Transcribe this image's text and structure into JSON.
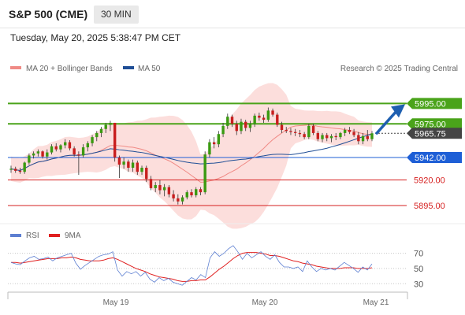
{
  "header": {
    "symbol": "S&P 500 (CME)",
    "interval": "30 MIN",
    "datetime": "Tuesday, May 20, 2025 5:38:47 PM CET"
  },
  "legend": {
    "ma20_label": "MA 20 + Bollinger Bands",
    "ma50_label": "MA 50",
    "credit": "Research © 2025 Trading Central",
    "ma20_color": "#f08a85",
    "ma50_color": "#1f4e96"
  },
  "chart_data": [
    {
      "type": "candlestick",
      "title": "",
      "x_ticks": [
        "May 19",
        "May 20",
        "May 21"
      ],
      "ylim": [
        5878,
        6013
      ],
      "levels": [
        {
          "value": 5995.0,
          "label": "5995.00",
          "color": "#4aa31a",
          "kind": "resistance"
        },
        {
          "value": 5975.0,
          "label": "5975.00",
          "color": "#4aa31a",
          "kind": "resistance"
        },
        {
          "value": 5965.75,
          "label": "5965.75",
          "color": "#444444",
          "kind": "last-price"
        },
        {
          "value": 5942.0,
          "label": "5942.00",
          "color": "#1e5fd6",
          "kind": "pivot"
        },
        {
          "value": 5920.0,
          "label": "5920.00",
          "color": "#d62020",
          "kind": "support"
        },
        {
          "value": 5895.0,
          "label": "5895.00",
          "color": "#d62020",
          "kind": "support"
        }
      ],
      "candles": [
        {
          "o": 5930,
          "h": 5934,
          "l": 5927,
          "c": 5931
        },
        {
          "o": 5931,
          "h": 5933,
          "l": 5927,
          "c": 5929
        },
        {
          "o": 5929,
          "h": 5932,
          "l": 5926,
          "c": 5928
        },
        {
          "o": 5928,
          "h": 5938,
          "l": 5926,
          "c": 5937
        },
        {
          "o": 5937,
          "h": 5946,
          "l": 5935,
          "c": 5944
        },
        {
          "o": 5944,
          "h": 5948,
          "l": 5941,
          "c": 5946
        },
        {
          "o": 5946,
          "h": 5950,
          "l": 5943,
          "c": 5948
        },
        {
          "o": 5948,
          "h": 5949,
          "l": 5941,
          "c": 5943
        },
        {
          "o": 5943,
          "h": 5950,
          "l": 5940,
          "c": 5947
        },
        {
          "o": 5947,
          "h": 5955,
          "l": 5945,
          "c": 5953
        },
        {
          "o": 5953,
          "h": 5956,
          "l": 5948,
          "c": 5950
        },
        {
          "o": 5950,
          "h": 5955,
          "l": 5947,
          "c": 5954
        },
        {
          "o": 5954,
          "h": 5960,
          "l": 5951,
          "c": 5957
        },
        {
          "o": 5957,
          "h": 5959,
          "l": 5949,
          "c": 5951
        },
        {
          "o": 5951,
          "h": 5953,
          "l": 5943,
          "c": 5945
        },
        {
          "o": 5945,
          "h": 5948,
          "l": 5925,
          "c": 5944
        },
        {
          "o": 5944,
          "h": 5955,
          "l": 5942,
          "c": 5952
        },
        {
          "o": 5952,
          "h": 5958,
          "l": 5948,
          "c": 5956
        },
        {
          "o": 5956,
          "h": 5964,
          "l": 5953,
          "c": 5962
        },
        {
          "o": 5962,
          "h": 5968,
          "l": 5958,
          "c": 5966
        },
        {
          "o": 5966,
          "h": 5972,
          "l": 5962,
          "c": 5970
        },
        {
          "o": 5970,
          "h": 5976,
          "l": 5966,
          "c": 5974
        },
        {
          "o": 5974,
          "h": 5978,
          "l": 5968,
          "c": 5976
        },
        {
          "o": 5976,
          "h": 5976,
          "l": 5938,
          "c": 5942
        },
        {
          "o": 5942,
          "h": 5944,
          "l": 5922,
          "c": 5935
        },
        {
          "o": 5935,
          "h": 5942,
          "l": 5931,
          "c": 5938
        },
        {
          "o": 5938,
          "h": 5940,
          "l": 5928,
          "c": 5932
        },
        {
          "o": 5932,
          "h": 5940,
          "l": 5928,
          "c": 5937
        },
        {
          "o": 5937,
          "h": 5939,
          "l": 5925,
          "c": 5928
        },
        {
          "o": 5928,
          "h": 5934,
          "l": 5925,
          "c": 5932
        },
        {
          "o": 5932,
          "h": 5934,
          "l": 5918,
          "c": 5921
        },
        {
          "o": 5921,
          "h": 5924,
          "l": 5910,
          "c": 5912
        },
        {
          "o": 5912,
          "h": 5918,
          "l": 5908,
          "c": 5915
        },
        {
          "o": 5915,
          "h": 5920,
          "l": 5906,
          "c": 5910
        },
        {
          "o": 5910,
          "h": 5916,
          "l": 5904,
          "c": 5913
        },
        {
          "o": 5913,
          "h": 5915,
          "l": 5903,
          "c": 5906
        },
        {
          "o": 5906,
          "h": 5910,
          "l": 5899,
          "c": 5902
        },
        {
          "o": 5902,
          "h": 5906,
          "l": 5896,
          "c": 5899
        },
        {
          "o": 5899,
          "h": 5905,
          "l": 5896,
          "c": 5903
        },
        {
          "o": 5903,
          "h": 5910,
          "l": 5901,
          "c": 5908
        },
        {
          "o": 5908,
          "h": 5911,
          "l": 5903,
          "c": 5905
        },
        {
          "o": 5905,
          "h": 5913,
          "l": 5903,
          "c": 5911
        },
        {
          "o": 5911,
          "h": 5913,
          "l": 5905,
          "c": 5908
        },
        {
          "o": 5908,
          "h": 5948,
          "l": 5906,
          "c": 5945
        },
        {
          "o": 5945,
          "h": 5960,
          "l": 5942,
          "c": 5957
        },
        {
          "o": 5957,
          "h": 5962,
          "l": 5951,
          "c": 5955
        },
        {
          "o": 5955,
          "h": 5968,
          "l": 5952,
          "c": 5965
        },
        {
          "o": 5965,
          "h": 5976,
          "l": 5962,
          "c": 5973
        },
        {
          "o": 5973,
          "h": 5985,
          "l": 5970,
          "c": 5982
        },
        {
          "o": 5982,
          "h": 5984,
          "l": 5972,
          "c": 5975
        },
        {
          "o": 5975,
          "h": 5978,
          "l": 5964,
          "c": 5968
        },
        {
          "o": 5968,
          "h": 5980,
          "l": 5965,
          "c": 5977
        },
        {
          "o": 5977,
          "h": 5979,
          "l": 5968,
          "c": 5971
        },
        {
          "o": 5971,
          "h": 5978,
          "l": 5967,
          "c": 5975
        },
        {
          "o": 5975,
          "h": 5985,
          "l": 5972,
          "c": 5983
        },
        {
          "o": 5983,
          "h": 5986,
          "l": 5978,
          "c": 5981
        },
        {
          "o": 5981,
          "h": 5984,
          "l": 5976,
          "c": 5979
        },
        {
          "o": 5979,
          "h": 5991,
          "l": 5977,
          "c": 5988
        },
        {
          "o": 5988,
          "h": 5990,
          "l": 5982,
          "c": 5984
        },
        {
          "o": 5984,
          "h": 5986,
          "l": 5972,
          "c": 5974
        },
        {
          "o": 5974,
          "h": 5977,
          "l": 5966,
          "c": 5969
        },
        {
          "o": 5969,
          "h": 5972,
          "l": 5966,
          "c": 5968
        },
        {
          "o": 5968,
          "h": 5971,
          "l": 5964,
          "c": 5967
        },
        {
          "o": 5967,
          "h": 5970,
          "l": 5963,
          "c": 5966
        },
        {
          "o": 5966,
          "h": 5969,
          "l": 5962,
          "c": 5965
        },
        {
          "o": 5965,
          "h": 5967,
          "l": 5960,
          "c": 5962
        },
        {
          "o": 5962,
          "h": 5975,
          "l": 5960,
          "c": 5973
        },
        {
          "o": 5973,
          "h": 5975,
          "l": 5964,
          "c": 5966
        },
        {
          "o": 5966,
          "h": 5968,
          "l": 5958,
          "c": 5960
        },
        {
          "o": 5960,
          "h": 5966,
          "l": 5957,
          "c": 5964
        },
        {
          "o": 5964,
          "h": 5966,
          "l": 5958,
          "c": 5961
        },
        {
          "o": 5961,
          "h": 5965,
          "l": 5957,
          "c": 5963
        },
        {
          "o": 5963,
          "h": 5966,
          "l": 5959,
          "c": 5962
        },
        {
          "o": 5962,
          "h": 5967,
          "l": 5960,
          "c": 5966
        },
        {
          "o": 5966,
          "h": 5971,
          "l": 5963,
          "c": 5969
        },
        {
          "o": 5969,
          "h": 5972,
          "l": 5965,
          "c": 5967
        },
        {
          "o": 5967,
          "h": 5970,
          "l": 5962,
          "c": 5964
        },
        {
          "o": 5964,
          "h": 5967,
          "l": 5955,
          "c": 5958
        },
        {
          "o": 5958,
          "h": 5966,
          "l": 5955,
          "c": 5963
        },
        {
          "o": 5963,
          "h": 5969,
          "l": 5958,
          "c": 5960
        },
        {
          "o": 5960,
          "h": 5968,
          "l": 5958,
          "c": 5965.75
        }
      ]
    },
    {
      "type": "line",
      "legend": [
        {
          "name": "RSI",
          "color": "#5d7fd1"
        },
        {
          "name": "9MA",
          "color": "#e02020"
        }
      ],
      "y_ticks": [
        70,
        50,
        30
      ],
      "ylim": [
        22,
        82
      ],
      "rsi": [
        58,
        56,
        55,
        60,
        64,
        66,
        62,
        63,
        65,
        60,
        64,
        66,
        68,
        70,
        57,
        49,
        54,
        58,
        62,
        66,
        68,
        69,
        72,
        48,
        40,
        46,
        43,
        46,
        40,
        45,
        36,
        32,
        38,
        34,
        37,
        32,
        30,
        28,
        33,
        38,
        35,
        42,
        38,
        64,
        72,
        66,
        70,
        76,
        80,
        72,
        62,
        70,
        64,
        68,
        72,
        66,
        62,
        68,
        58,
        52,
        52,
        50,
        52,
        46,
        60,
        52,
        46,
        50,
        48,
        50,
        48,
        53,
        58,
        54,
        50,
        45,
        52,
        48,
        56
      ],
      "ma9": [
        58,
        58,
        57,
        58,
        59,
        60,
        61,
        62,
        63,
        63,
        63,
        64,
        64,
        65,
        64,
        62,
        61,
        60,
        60,
        60,
        61,
        63,
        64,
        62,
        59,
        56,
        53,
        50,
        48,
        46,
        43,
        41,
        39,
        38,
        37,
        36,
        34,
        33,
        33,
        34,
        34,
        35,
        35,
        39,
        44,
        49,
        53,
        58,
        63,
        67,
        70,
        71,
        71,
        71,
        70,
        69,
        67,
        67,
        66,
        64,
        62,
        60,
        59,
        57,
        56,
        55,
        53,
        52,
        51,
        50,
        50,
        50,
        51,
        51,
        51,
        50,
        50,
        50,
        51
      ]
    }
  ]
}
